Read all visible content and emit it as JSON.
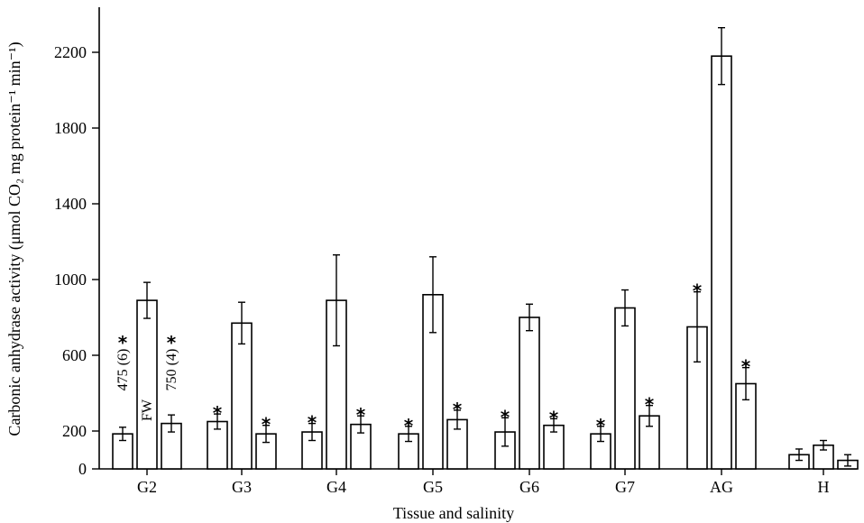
{
  "chart_data": {
    "type": "bar",
    "xlabel": "Tissue and salinity",
    "ylabel": "Carbonic anhydrase activity (μmol CO₂ mg protein⁻¹ min⁻¹)",
    "ylim": [
      0,
      2300
    ],
    "yticks": [
      0,
      200,
      600,
      1000,
      1400,
      1800,
      2200
    ],
    "categories": [
      "G2",
      "G3",
      "G4",
      "G5",
      "G6",
      "G7",
      "AG",
      "H"
    ],
    "series": [
      {
        "name": "475 (6)",
        "values": [
          185,
          250,
          195,
          185,
          195,
          185,
          750,
          75
        ],
        "errors": [
          35,
          40,
          45,
          40,
          75,
          40,
          185,
          30
        ],
        "significant": [
          true,
          true,
          true,
          true,
          true,
          true,
          true,
          false
        ]
      },
      {
        "name": "FW",
        "values": [
          890,
          770,
          890,
          920,
          800,
          850,
          2180,
          125
        ],
        "errors": [
          95,
          110,
          240,
          200,
          70,
          95,
          150,
          25
        ],
        "significant": [
          false,
          false,
          false,
          false,
          false,
          false,
          false,
          false
        ]
      },
      {
        "name": "750 (4)",
        "values": [
          240,
          185,
          235,
          260,
          230,
          280,
          450,
          45
        ],
        "errors": [
          45,
          45,
          45,
          50,
          35,
          55,
          85,
          30
        ],
        "significant": [
          true,
          true,
          true,
          true,
          true,
          true,
          true,
          false
        ]
      }
    ],
    "legend": "labels drawn vertically inside G2 bars",
    "grid": false
  }
}
